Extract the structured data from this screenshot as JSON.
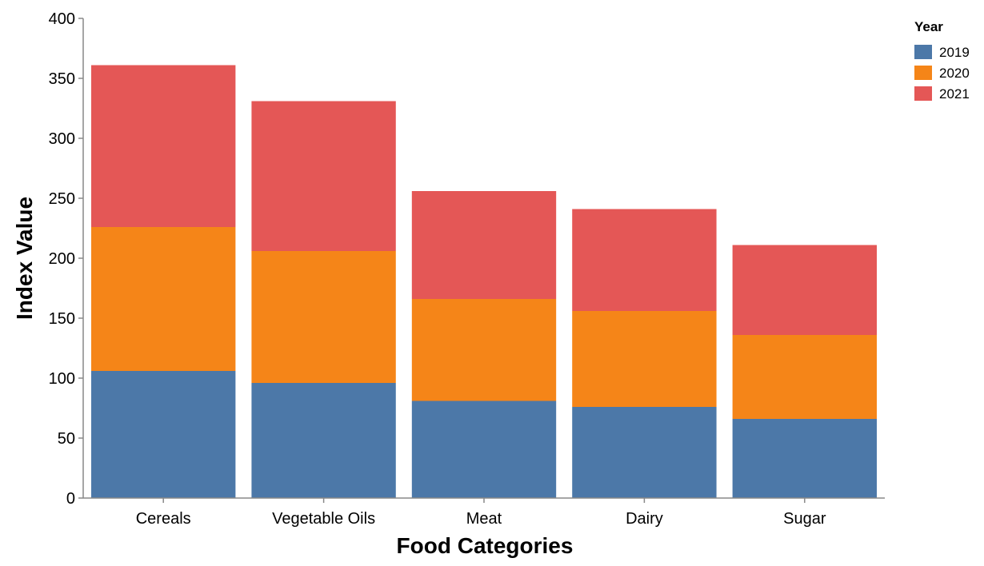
{
  "chart_data": {
    "type": "bar",
    "stacked": true,
    "categories": [
      "Cereals",
      "Vegetable Oils",
      "Meat",
      "Dairy",
      "Sugar"
    ],
    "series": [
      {
        "name": "2019",
        "color": "#4c78a8",
        "values": [
          106,
          96,
          81,
          76,
          66
        ]
      },
      {
        "name": "2020",
        "color": "#f58518",
        "values": [
          120,
          110,
          85,
          80,
          70
        ]
      },
      {
        "name": "2021",
        "color": "#e45756",
        "values": [
          135,
          125,
          90,
          85,
          75
        ]
      }
    ],
    "xlabel": "Food Categories",
    "ylabel": "Index Value",
    "ylim": [
      0,
      400
    ],
    "yticks": [
      0,
      50,
      100,
      150,
      200,
      250,
      300,
      350,
      400
    ],
    "legend_title": "Year",
    "legend_position": "top-right",
    "grid": false
  }
}
